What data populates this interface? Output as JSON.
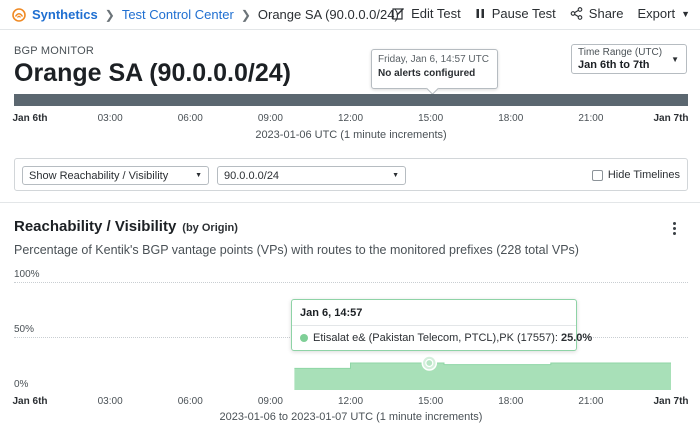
{
  "nav": {
    "breadcrumbs": [
      "Synthetics",
      "Test Control Center",
      "Orange SA (90.0.0.0/24)"
    ],
    "actions": {
      "edit": "Edit Test",
      "pause": "Pause Test",
      "share": "Share",
      "export": "Export"
    }
  },
  "header": {
    "monitor_type": "BGP MONITOR",
    "title": "Orange SA (90.0.0.0/24)",
    "tooltip": {
      "date": "Friday, Jan 6, 14:57 UTC",
      "status": "No alerts configured"
    },
    "time_range": {
      "label": "Time Range (UTC)",
      "value": "Jan 6th to 7th"
    }
  },
  "timeline": {
    "ticks": [
      "Jan 6th",
      "03:00",
      "06:00",
      "09:00",
      "12:00",
      "15:00",
      "18:00",
      "21:00",
      "Jan 7th"
    ],
    "caption": "2023-01-06 UTC (1 minute increments)"
  },
  "filters": {
    "view_select": "Show Reachability / Visibility",
    "prefix_select": "90.0.0.0/24",
    "hide_timelines_label": "Hide Timelines",
    "hide_timelines_checked": false
  },
  "section": {
    "title": "Reachability / Visibility",
    "subtitle": "(by Origin)",
    "description": "Percentage of Kentik's BGP vantage points (VPs) with routes to the monitored prefixes (228 total VPs)"
  },
  "chart_data": {
    "type": "area",
    "y_ticks": [
      "100%",
      "50%",
      "0%"
    ],
    "ylim": [
      0,
      100
    ],
    "x_ticks": [
      "Jan 6th",
      "03:00",
      "06:00",
      "09:00",
      "12:00",
      "15:00",
      "18:00",
      "21:00",
      "Jan 7th"
    ],
    "xlim_hours": [
      0,
      24
    ],
    "caption": "2023-01-06 to 2023-01-07 UTC (1 minute increments)",
    "series": [
      {
        "name": "Etisalat e& (Pakistan Telecom, PTCL),PK (17557)",
        "color": "#a8e0b8",
        "points": [
          {
            "x_hours": 9.9,
            "y": 0
          },
          {
            "x_hours": 9.9,
            "y": 20
          },
          {
            "x_hours": 12.0,
            "y": 20
          },
          {
            "x_hours": 12.0,
            "y": 25
          },
          {
            "x_hours": 15.5,
            "y": 25
          },
          {
            "x_hours": 15.5,
            "y": 23.5
          },
          {
            "x_hours": 19.5,
            "y": 23.5
          },
          {
            "x_hours": 19.5,
            "y": 25
          },
          {
            "x_hours": 24.0,
            "y": 25
          },
          {
            "x_hours": 24.0,
            "y": 0
          }
        ]
      }
    ],
    "hover": {
      "x_hours": 14.95,
      "time": "Jan 6, 14:57",
      "series": "Etisalat e& (Pakistan Telecom, PTCL),PK (17557):",
      "value": "25.0%"
    }
  }
}
